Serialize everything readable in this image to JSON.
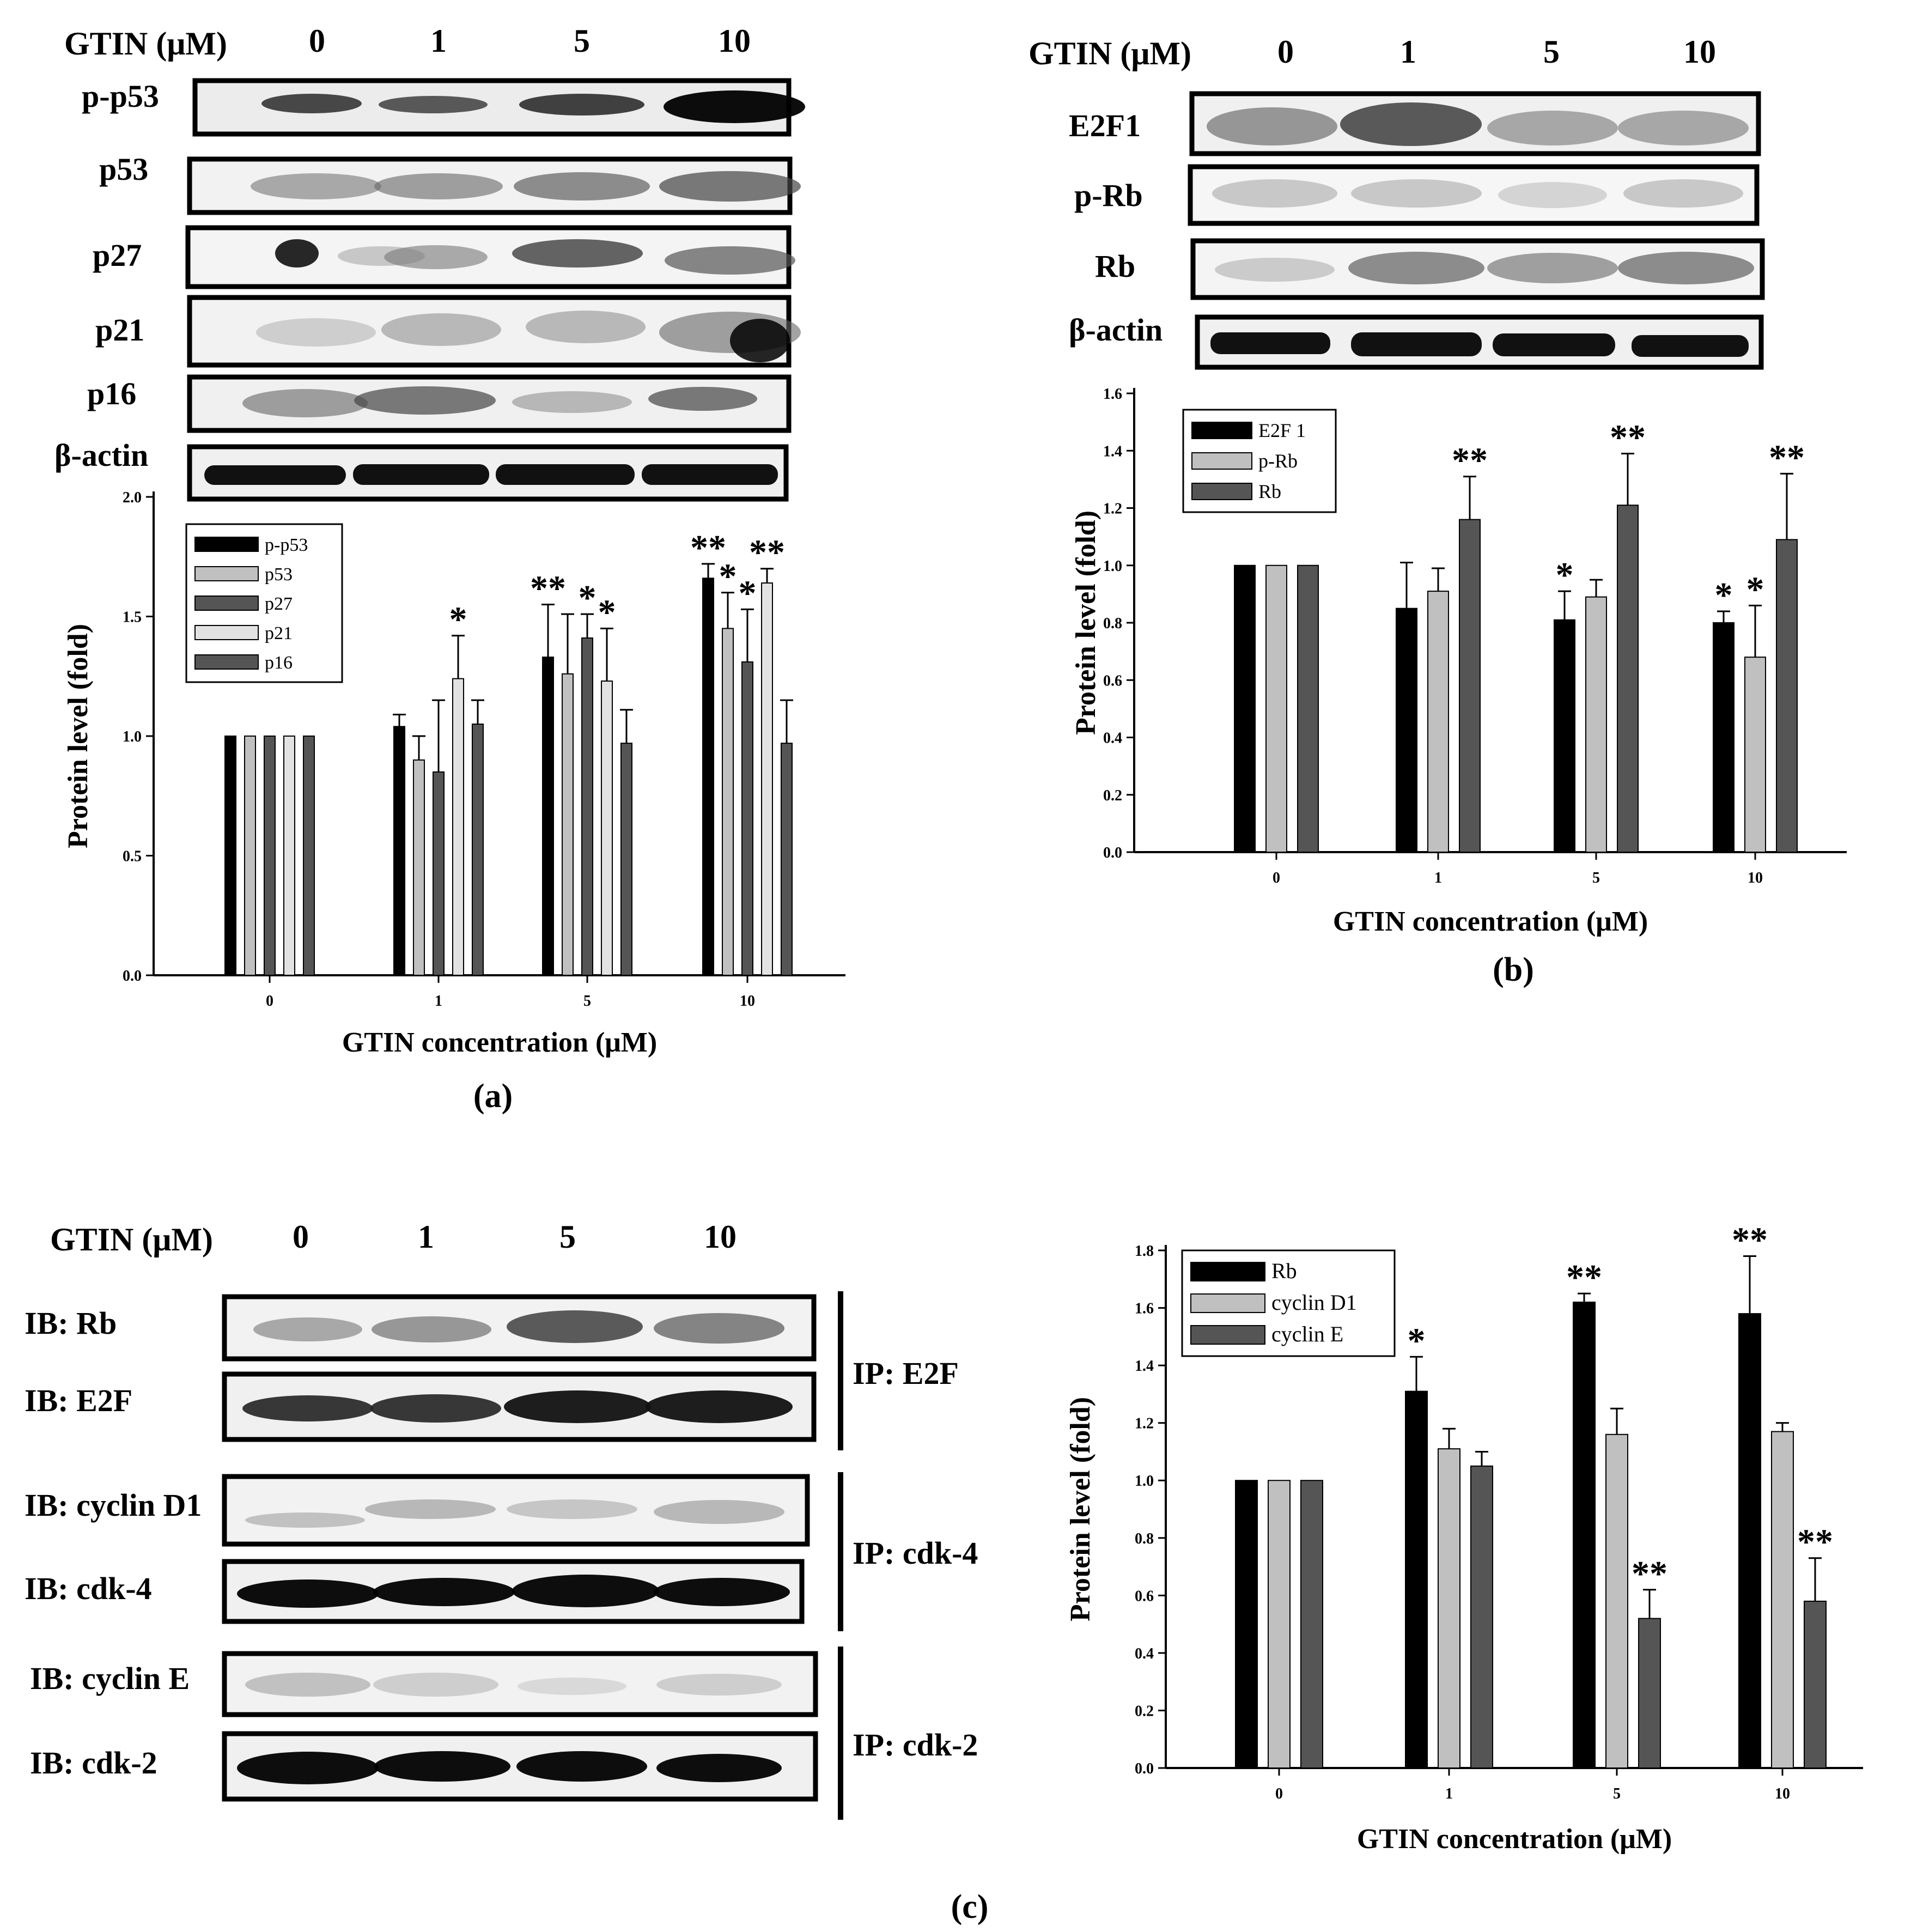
{
  "conc_header": "GTIN (μM)",
  "doses": [
    "0",
    "1",
    "5",
    "10"
  ],
  "panels": {
    "a": {
      "label": "(a)",
      "blot_rows": [
        "p-p53",
        "p53",
        "p27",
        "p21",
        "p16",
        "β-actin"
      ]
    },
    "b": {
      "label": "(b)",
      "blot_rows": [
        "E2F1",
        "p-Rb",
        "Rb",
        "β-actin"
      ]
    },
    "c": {
      "label": "(c)",
      "blot_rows": [
        "IB: Rb",
        "IB: E2F",
        "IB: cyclin D1",
        "IB: cdk-4",
        "IB: cyclin E",
        "IB: cdk-2"
      ],
      "ip_groups": [
        "IP: E2F",
        "IP: cdk-4",
        "IP: cdk-2"
      ]
    }
  },
  "colors": {
    "black": "#000000",
    "light_gray": "#c0c0c0",
    "dark_gray": "#555555",
    "pale_gray": "#e2e2e2"
  },
  "chart_data": [
    {
      "panel": "a",
      "type": "bar",
      "categories": [
        "0",
        "1",
        "5",
        "10"
      ],
      "xlabel": "GTIN concentration (μM)",
      "ylabel": "Protein level (fold)",
      "ylim": [
        0,
        2.0
      ],
      "yticks": [
        "0.0",
        "0.5",
        "1.0",
        "1.5",
        "2.0"
      ],
      "legend_position": "top-left",
      "series": [
        {
          "name": "p-p53",
          "color": "#000000",
          "values": [
            1.0,
            1.04,
            1.33,
            1.66
          ],
          "errors": [
            0,
            0.05,
            0.22,
            0.06
          ],
          "sig": [
            "",
            "",
            "**",
            "**"
          ]
        },
        {
          "name": "p53",
          "color": "#c0c0c0",
          "values": [
            1.0,
            0.9,
            1.26,
            1.45
          ],
          "errors": [
            0,
            0.1,
            0.25,
            0.15
          ],
          "sig": [
            "",
            "",
            "",
            "*"
          ]
        },
        {
          "name": "p27",
          "color": "#555555",
          "values": [
            1.0,
            0.85,
            1.41,
            1.31
          ],
          "errors": [
            0,
            0.3,
            0.1,
            0.22
          ],
          "sig": [
            "",
            "",
            "*",
            "*"
          ]
        },
        {
          "name": "p21",
          "color": "#e2e2e2",
          "values": [
            1.0,
            1.24,
            1.23,
            1.64
          ],
          "errors": [
            0,
            0.18,
            0.22,
            0.06
          ],
          "sig": [
            "",
            "*",
            "*",
            "**"
          ]
        },
        {
          "name": "p16",
          "color": "#555555",
          "values": [
            1.0,
            1.05,
            0.97,
            0.97
          ],
          "errors": [
            0,
            0.1,
            0.14,
            0.18
          ],
          "sig": [
            "",
            "",
            "",
            ""
          ]
        }
      ]
    },
    {
      "panel": "b",
      "type": "bar",
      "categories": [
        "0",
        "1",
        "5",
        "10"
      ],
      "xlabel": "GTIN concentration (μM)",
      "ylabel": "Protein level (fold)",
      "ylim": [
        0,
        1.6
      ],
      "yticks": [
        "0.0",
        "0.2",
        "0.4",
        "0.6",
        "0.8",
        "1.0",
        "1.2",
        "1.4",
        "1.6"
      ],
      "legend_position": "top-left",
      "series": [
        {
          "name": "E2F1",
          "legend_text": "E2F 1",
          "color": "#000000",
          "values": [
            1.0,
            0.85,
            0.81,
            0.8
          ],
          "errors": [
            0,
            0.16,
            0.1,
            0.04
          ],
          "sig": [
            "",
            "",
            "*",
            "*"
          ]
        },
        {
          "name": "p-Rb",
          "color": "#c0c0c0",
          "values": [
            1.0,
            0.91,
            0.89,
            0.68
          ],
          "errors": [
            0,
            0.08,
            0.06,
            0.18
          ],
          "sig": [
            "",
            "",
            "",
            "*"
          ]
        },
        {
          "name": "Rb",
          "color": "#555555",
          "values": [
            1.0,
            1.16,
            1.21,
            1.09
          ],
          "errors": [
            0,
            0.15,
            0.18,
            0.23
          ],
          "sig": [
            "",
            "**",
            "**",
            "**"
          ]
        }
      ]
    },
    {
      "panel": "c",
      "type": "bar",
      "categories": [
        "0",
        "1",
        "5",
        "10"
      ],
      "xlabel": "GTIN concentration (μM)",
      "ylabel": "Protein level (fold)",
      "ylim": [
        0,
        1.8
      ],
      "yticks": [
        "0.0",
        "0.2",
        "0.4",
        "0.6",
        "0.8",
        "1.0",
        "1.2",
        "1.4",
        "1.6",
        "1.8"
      ],
      "legend_position": "top-left",
      "series": [
        {
          "name": "Rb",
          "color": "#000000",
          "values": [
            1.0,
            1.31,
            1.62,
            1.58
          ],
          "errors": [
            0,
            0.12,
            0.03,
            0.2
          ],
          "sig": [
            "",
            "*",
            "**",
            "**"
          ]
        },
        {
          "name": "cyclin D1",
          "color": "#c0c0c0",
          "values": [
            1.0,
            1.11,
            1.16,
            1.17
          ],
          "errors": [
            0,
            0.07,
            0.09,
            0.03
          ],
          "sig": [
            "",
            "",
            "",
            ""
          ]
        },
        {
          "name": "cyclin E",
          "color": "#555555",
          "values": [
            1.0,
            1.05,
            0.52,
            0.58
          ],
          "errors": [
            0,
            0.05,
            0.1,
            0.15
          ],
          "sig": [
            "",
            "",
            "**",
            "**"
          ]
        }
      ]
    }
  ]
}
